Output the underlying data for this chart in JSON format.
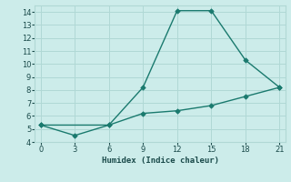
{
  "line1_x": [
    0,
    6,
    9,
    12,
    15,
    18,
    21
  ],
  "line1_y": [
    5.3,
    5.3,
    8.2,
    14.1,
    14.1,
    10.3,
    8.2
  ],
  "line2_x": [
    0,
    3,
    6,
    9,
    12,
    15,
    18,
    21
  ],
  "line2_y": [
    5.3,
    4.5,
    5.3,
    6.2,
    6.4,
    6.8,
    7.5,
    8.2
  ],
  "line_color": "#1a7a6e",
  "bg_color": "#ccecea",
  "grid_color": "#b0d8d5",
  "xlabel": "Humidex (Indice chaleur)",
  "xlim": [
    -0.5,
    21.5
  ],
  "ylim": [
    4,
    14.5
  ],
  "xticks": [
    0,
    3,
    6,
    9,
    12,
    15,
    18,
    21
  ],
  "yticks": [
    4,
    5,
    6,
    7,
    8,
    9,
    10,
    11,
    12,
    13,
    14
  ],
  "marker": "D",
  "markersize": 2.8,
  "linewidth": 1.0
}
